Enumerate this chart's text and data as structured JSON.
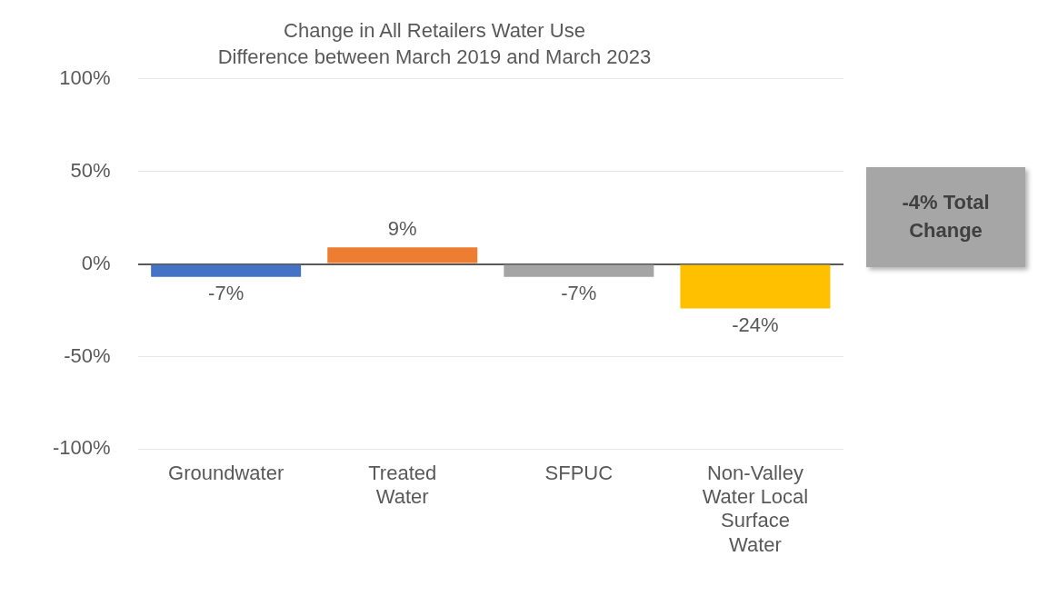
{
  "chart_data": {
    "type": "bar",
    "title": "Change in All Retailers Water Use",
    "subtitle": "Difference between March 2019 and March 2023",
    "categories": [
      "Groundwater",
      "Treated Water",
      "SFPUC",
      "Non-Valley Water Local Surface Water"
    ],
    "values": [
      -7,
      9,
      -7,
      -24
    ],
    "colors": [
      "#4472c4",
      "#ed7d31",
      "#a5a5a5",
      "#ffc000"
    ],
    "value_labels": [
      "-7%",
      "9%",
      "-7%",
      "-24%"
    ],
    "ylim": [
      -100,
      100
    ],
    "yticks": [
      {
        "value": -100,
        "label": "-100%"
      },
      {
        "value": -50,
        "label": "-50%"
      },
      {
        "value": 0,
        "label": "0%"
      },
      {
        "value": 50,
        "label": "50%"
      },
      {
        "value": 100,
        "label": "100%"
      }
    ],
    "grid": "y",
    "annotations": [
      "-4% Total Change"
    ]
  }
}
